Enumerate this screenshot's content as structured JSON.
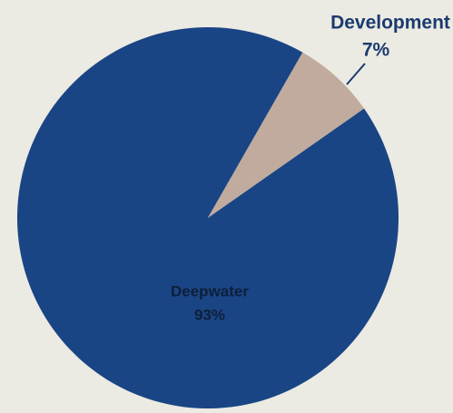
{
  "chart_data": {
    "type": "pie",
    "categories": [
      "Deepwater",
      "Development"
    ],
    "values": [
      93,
      7
    ],
    "value_labels": [
      "93%",
      "7%"
    ],
    "colors": [
      "#1a4585",
      "#c1ab9e"
    ]
  }
}
